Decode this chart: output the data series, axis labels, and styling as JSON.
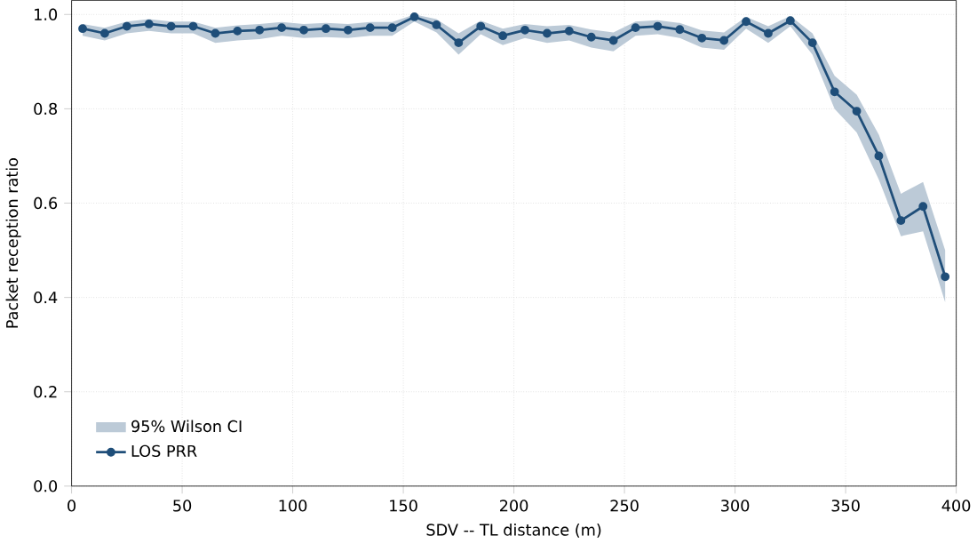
{
  "chart_data": {
    "type": "line",
    "xlabel": "SDV -- TL distance (m)",
    "ylabel": "Packet reception ratio",
    "annotations": [
      "95% Wilson CI"
    ],
    "x": [
      5,
      15,
      25,
      35,
      45,
      55,
      65,
      75,
      85,
      95,
      105,
      115,
      125,
      135,
      145,
      155,
      165,
      175,
      185,
      195,
      205,
      215,
      225,
      235,
      245,
      255,
      265,
      275,
      285,
      295,
      305,
      315,
      325,
      335,
      345,
      355,
      365,
      375,
      385,
      395
    ],
    "series": [
      {
        "name": "LOS PRR",
        "color": "#1f4e79",
        "values": [
          0.97,
          0.96,
          0.975,
          0.98,
          0.975,
          0.975,
          0.96,
          0.965,
          0.967,
          0.972,
          0.967,
          0.97,
          0.967,
          0.972,
          0.972,
          0.995,
          0.978,
          0.94,
          0.975,
          0.955,
          0.967,
          0.96,
          0.965,
          0.952,
          0.945,
          0.972,
          0.975,
          0.968,
          0.95,
          0.945,
          0.985,
          0.96,
          0.987,
          0.94,
          0.836,
          0.795,
          0.7,
          0.563,
          0.593,
          0.444
        ],
        "lower": [
          0.955,
          0.945,
          0.96,
          0.965,
          0.96,
          0.96,
          0.94,
          0.945,
          0.948,
          0.955,
          0.95,
          0.952,
          0.95,
          0.955,
          0.955,
          0.985,
          0.962,
          0.915,
          0.958,
          0.935,
          0.95,
          0.94,
          0.945,
          0.93,
          0.922,
          0.955,
          0.958,
          0.95,
          0.93,
          0.925,
          0.97,
          0.94,
          0.975,
          0.915,
          0.8,
          0.75,
          0.65,
          0.53,
          0.54,
          0.39
        ],
        "upper": [
          0.98,
          0.972,
          0.985,
          0.99,
          0.985,
          0.985,
          0.972,
          0.977,
          0.98,
          0.984,
          0.98,
          0.982,
          0.98,
          0.984,
          0.984,
          1.0,
          0.99,
          0.96,
          0.987,
          0.97,
          0.98,
          0.975,
          0.978,
          0.968,
          0.962,
          0.985,
          0.988,
          0.982,
          0.966,
          0.962,
          0.995,
          0.975,
          0.997,
          0.96,
          0.87,
          0.83,
          0.745,
          0.62,
          0.645,
          0.5
        ]
      }
    ],
    "xlim": [
      0,
      400
    ],
    "ylim": [
      0.0,
      1.03
    ],
    "xticks": [
      0,
      50,
      100,
      150,
      200,
      250,
      300,
      350,
      400
    ],
    "yticks": [
      {
        "value": 0.0,
        "label": "0.0"
      },
      {
        "value": 0.2,
        "label": "0.2"
      },
      {
        "value": 0.4,
        "label": "0.4"
      },
      {
        "value": 0.6,
        "label": "0.6"
      },
      {
        "value": 0.8,
        "label": "0.8"
      },
      {
        "value": 1.0,
        "label": "1.0"
      }
    ],
    "grid": true,
    "legend": "bottom left",
    "marker": "circle",
    "line_style": "solid"
  }
}
